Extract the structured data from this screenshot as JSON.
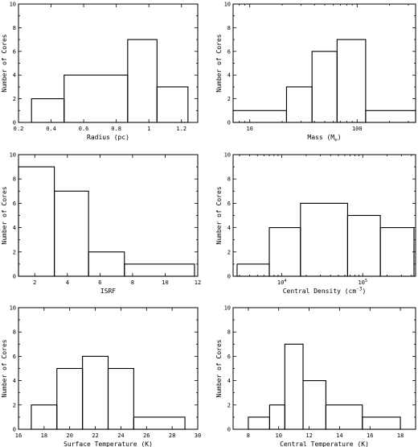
{
  "chart_data": [
    {
      "type": "bar",
      "subtype": "histogram",
      "xlabel": "Radius (pc)",
      "ylabel": "Number of Cores",
      "xscale": "linear",
      "xlim": [
        0.2,
        1.3
      ],
      "ylim": [
        0,
        10
      ],
      "xticks": [
        0.2,
        0.4,
        0.6,
        0.8,
        1.0,
        1.2
      ],
      "xtick_labels": [
        "0.2",
        "0.4",
        "0.6",
        "0.8",
        "1",
        "1.2"
      ],
      "yticks": [
        0,
        2,
        4,
        6,
        8,
        10
      ],
      "bin_edges": [
        0.28,
        0.48,
        0.87,
        1.05,
        1.24
      ],
      "values": [
        2,
        4,
        7,
        3
      ]
    },
    {
      "type": "bar",
      "subtype": "histogram",
      "xlabel": "Mass (M⊙)",
      "xlabel_main": "Mass (M",
      "xlabel_sub": "⊙",
      "xlabel_end": ")",
      "ylabel": "Number of Cores",
      "xscale": "log",
      "xlim": [
        7,
        350
      ],
      "ylim": [
        0,
        10
      ],
      "xticks": [
        10,
        100
      ],
      "xtick_labels": [
        "10",
        "100"
      ],
      "yticks": [
        0,
        2,
        4,
        6,
        8,
        10
      ],
      "bin_edges": [
        7,
        22,
        38,
        65,
        120,
        350
      ],
      "values": [
        1,
        3,
        6,
        7,
        1
      ]
    },
    {
      "type": "bar",
      "subtype": "histogram",
      "xlabel": "ISRF",
      "ylabel": "Number of Cores",
      "xscale": "linear",
      "xlim": [
        1,
        12
      ],
      "ylim": [
        0,
        10
      ],
      "xticks": [
        2,
        4,
        6,
        8,
        10,
        12
      ],
      "xtick_labels": [
        "2",
        "4",
        "6",
        "8",
        "10",
        "12"
      ],
      "yticks": [
        0,
        2,
        4,
        6,
        8,
        10
      ],
      "bin_edges": [
        1,
        3.2,
        5.3,
        7.5,
        11.8
      ],
      "values": [
        9,
        7,
        2,
        1
      ]
    },
    {
      "type": "bar",
      "subtype": "histogram",
      "xlabel": "Central Density (cm⁻³)",
      "xlabel_main": "Central Density (cm",
      "xlabel_sup": "-3",
      "xlabel_end": ")",
      "ylabel": "Number of Cores",
      "xscale": "log",
      "xlim": [
        2500,
        450000
      ],
      "ylim": [
        0,
        10
      ],
      "xticks": [
        10000,
        100000
      ],
      "xtick_labels": [
        "10",
        "10"
      ],
      "xtick_exponents": [
        "4",
        "5"
      ],
      "yticks": [
        0,
        2,
        4,
        6,
        8,
        10
      ],
      "bin_edges": [
        2800,
        7000,
        17000,
        65000,
        165000,
        430000
      ],
      "values": [
        1,
        4,
        6,
        5,
        4
      ]
    },
    {
      "type": "bar",
      "subtype": "histogram",
      "xlabel": "Surface Temperature (K)",
      "ylabel": "Number of Cores",
      "xscale": "linear",
      "xlim": [
        16,
        30
      ],
      "ylim": [
        0,
        10
      ],
      "xticks": [
        16,
        18,
        20,
        22,
        24,
        26,
        28,
        30
      ],
      "xtick_labels": [
        "16",
        "18",
        "20",
        "22",
        "24",
        "26",
        "28",
        "30"
      ],
      "yticks": [
        0,
        2,
        4,
        6,
        8,
        10
      ],
      "bin_edges": [
        17,
        19,
        21,
        23,
        25,
        29
      ],
      "values": [
        2,
        5,
        6,
        5,
        1
      ]
    },
    {
      "type": "bar",
      "subtype": "histogram",
      "xlabel": "Central Temperature (K)",
      "ylabel": "Number of Cores",
      "xscale": "linear",
      "xlim": [
        7,
        19
      ],
      "ylim": [
        0,
        10
      ],
      "xticks": [
        8,
        10,
        12,
        14,
        16,
        18
      ],
      "xtick_labels": [
        "8",
        "10",
        "12",
        "14",
        "16",
        "18"
      ],
      "yticks": [
        0,
        2,
        4,
        6,
        8,
        10
      ],
      "bin_edges": [
        8,
        9.4,
        10.4,
        11.6,
        13.1,
        15.5,
        18
      ],
      "values": [
        1,
        2,
        7,
        4,
        2,
        1
      ]
    }
  ]
}
